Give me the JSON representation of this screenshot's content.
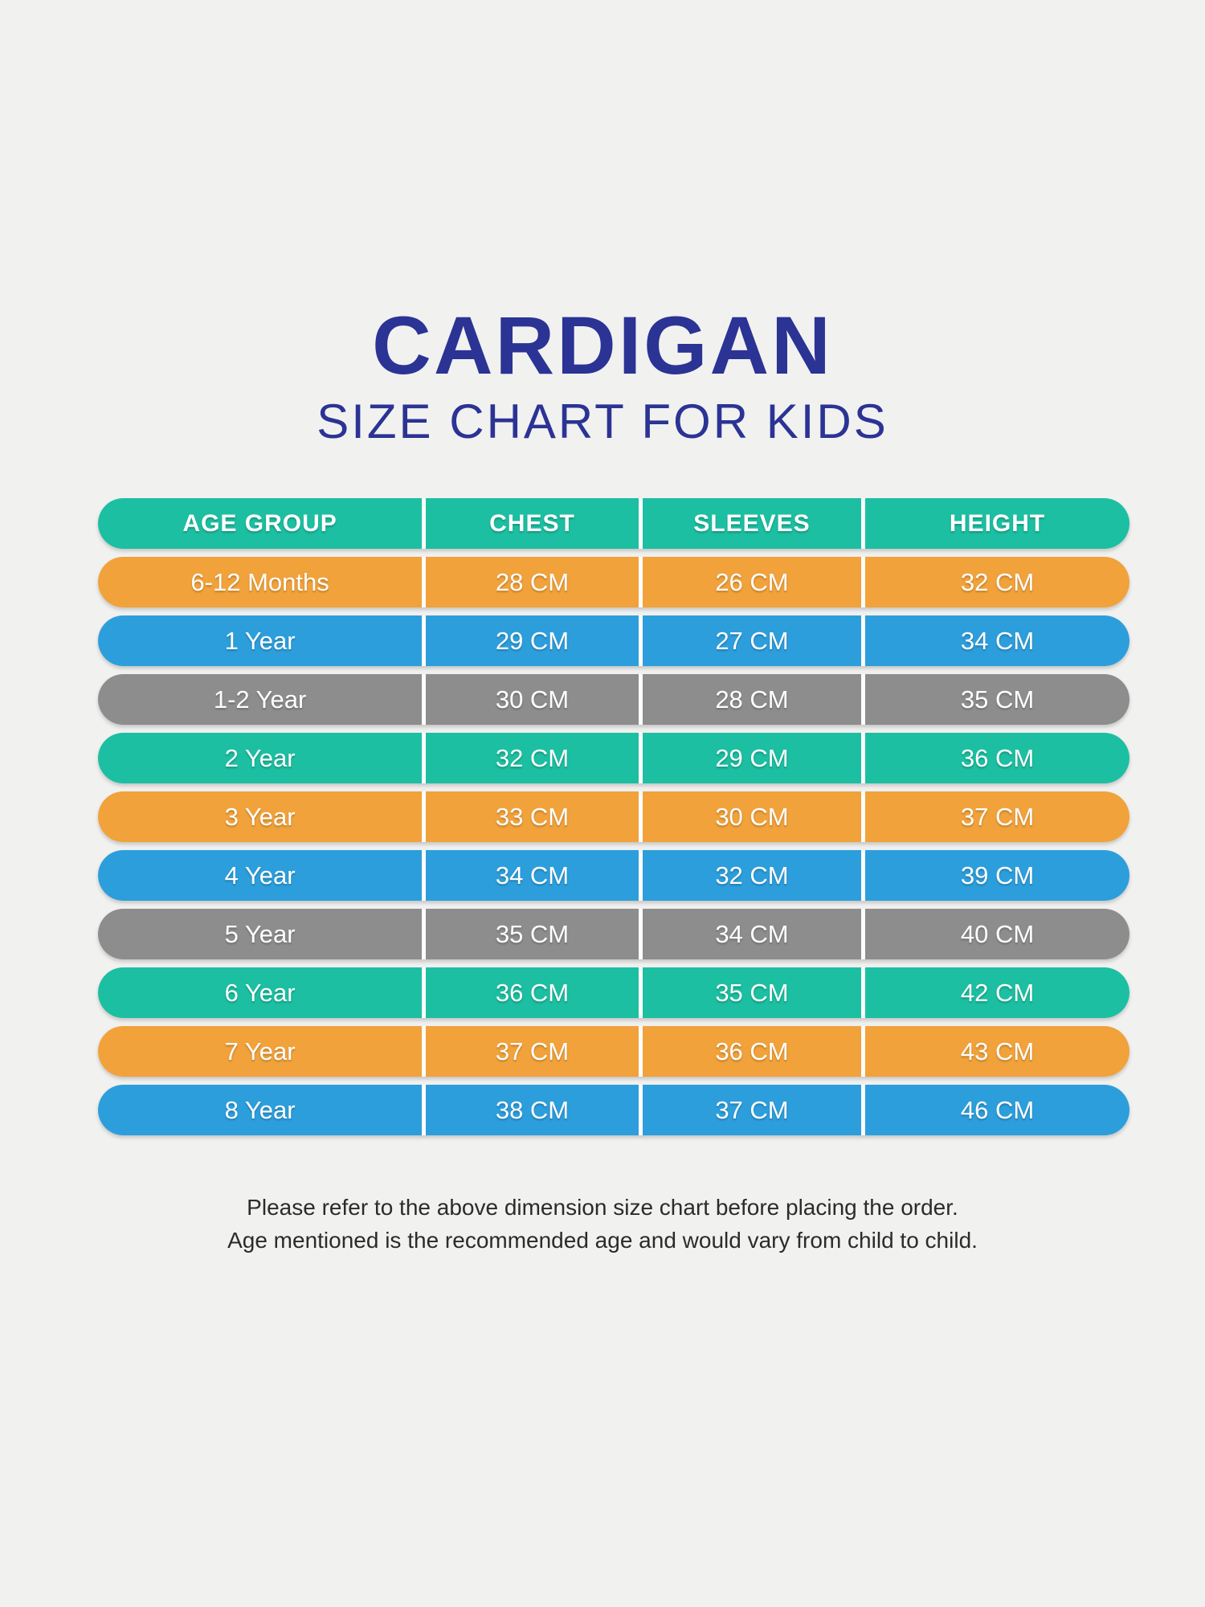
{
  "page": {
    "background_color": "#f1f1f0",
    "accent_title_color": "#2b3394"
  },
  "title": {
    "line1": "CARDIGAN",
    "line2": "SIZE CHART FOR KIDS"
  },
  "table": {
    "colors": {
      "teal": "#1cbfa1",
      "orange": "#f1a23b",
      "blue": "#2d9edc",
      "gray": "#8e8d8e"
    },
    "divider_color": "#fdfdfd",
    "header": {
      "color_key": "teal",
      "cells": [
        "AGE GROUP",
        "CHEST",
        "SLEEVES",
        "HEIGHT"
      ]
    },
    "rows": [
      {
        "color_key": "orange",
        "cells": [
          "6-12 Months",
          "28 CM",
          "26 CM",
          "32 CM"
        ]
      },
      {
        "color_key": "blue",
        "cells": [
          "1 Year",
          "29 CM",
          "27 CM",
          "34 CM"
        ]
      },
      {
        "color_key": "gray",
        "cells": [
          "1-2 Year",
          "30 CM",
          "28 CM",
          "35 CM"
        ]
      },
      {
        "color_key": "teal",
        "cells": [
          "2 Year",
          "32 CM",
          "29 CM",
          "36 CM"
        ]
      },
      {
        "color_key": "orange",
        "cells": [
          "3 Year",
          "33 CM",
          "30 CM",
          "37 CM"
        ]
      },
      {
        "color_key": "blue",
        "cells": [
          "4 Year",
          "34 CM",
          "32 CM",
          "39 CM"
        ]
      },
      {
        "color_key": "gray",
        "cells": [
          "5 Year",
          "35 CM",
          "34 CM",
          "40 CM"
        ]
      },
      {
        "color_key": "teal",
        "cells": [
          "6 Year",
          "36 CM",
          "35 CM",
          "42 CM"
        ]
      },
      {
        "color_key": "orange",
        "cells": [
          "7 Year",
          "37 CM",
          "36 CM",
          "43 CM"
        ]
      },
      {
        "color_key": "blue",
        "cells": [
          "8 Year",
          "38 CM",
          "37 CM",
          "46 CM"
        ]
      }
    ]
  },
  "footer": {
    "line1": "Please refer to the above dimension size chart before placing the order.",
    "line2": "Age mentioned is the recommended age and would vary from child to child."
  },
  "chart_data": {
    "type": "table",
    "title": "CARDIGAN SIZE CHART FOR KIDS",
    "columns": [
      "AGE GROUP",
      "CHEST",
      "SLEEVES",
      "HEIGHT"
    ],
    "rows": [
      [
        "6-12 Months",
        "28 CM",
        "26 CM",
        "32 CM"
      ],
      [
        "1 Year",
        "29 CM",
        "27 CM",
        "34 CM"
      ],
      [
        "1-2 Year",
        "30 CM",
        "28 CM",
        "35 CM"
      ],
      [
        "2 Year",
        "32 CM",
        "29 CM",
        "36 CM"
      ],
      [
        "3 Year",
        "33 CM",
        "30 CM",
        "37 CM"
      ],
      [
        "4 Year",
        "34 CM",
        "32 CM",
        "39 CM"
      ],
      [
        "5 Year",
        "35 CM",
        "34 CM",
        "40 CM"
      ],
      [
        "6 Year",
        "36 CM",
        "35 CM",
        "42 CM"
      ],
      [
        "7 Year",
        "37 CM",
        "36 CM",
        "43 CM"
      ],
      [
        "8 Year",
        "38 CM",
        "37 CM",
        "46 CM"
      ]
    ],
    "legend_position": "none",
    "grid": false
  }
}
